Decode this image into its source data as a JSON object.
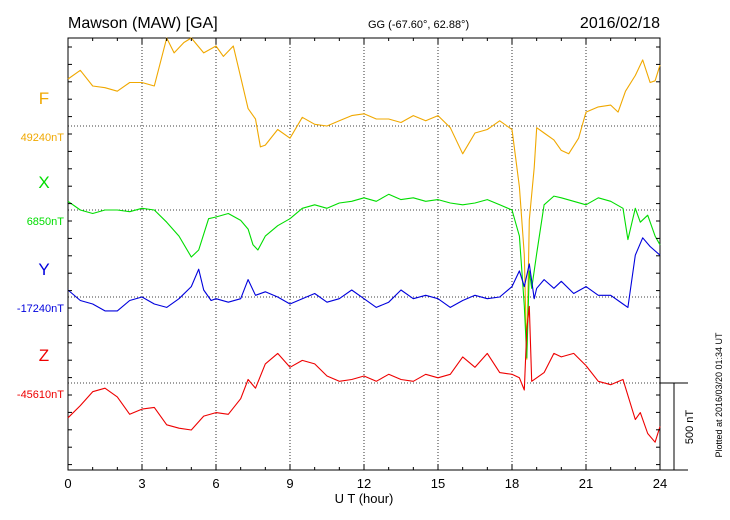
{
  "header": {
    "station": "Mawson (MAW)  [GA]",
    "coords": "GG (-67.60°,  62.88°)",
    "date": "2016/02/18"
  },
  "footer": {
    "xlabel": "U T (hour)",
    "scale_label": "500 nT",
    "plotted": "Plotted at 2016/03/20 01:34  UT"
  },
  "chart_data": {
    "type": "line",
    "xlabel": "U T (hour)",
    "xlim": [
      0,
      24
    ],
    "xticks": [
      "0",
      "3",
      "6",
      "9",
      "12",
      "15",
      "18",
      "21",
      "24"
    ],
    "scale_bar_nT": 500,
    "grid": true,
    "series": [
      {
        "name": "F",
        "baseline_label": "49240nT",
        "baseline_nT": 49240,
        "color": "#f0a800",
        "x": [
          0,
          0.5,
          1,
          1.5,
          2,
          2.5,
          3,
          3.5,
          4,
          4.3,
          4.7,
          5,
          5.5,
          6,
          6.3,
          6.7,
          7,
          7.3,
          7.6,
          7.8,
          8,
          8.5,
          9,
          9.5,
          10,
          10.5,
          11,
          11.5,
          12,
          12.5,
          13,
          13.5,
          14,
          14.5,
          15,
          15.5,
          16,
          16.5,
          17,
          17.5,
          18,
          18.3,
          18.5,
          18.6,
          18.7,
          18.9,
          19,
          19.3,
          19.7,
          20,
          20.3,
          20.7,
          21,
          21.5,
          22,
          22.3,
          22.6,
          23,
          23.3,
          23.6,
          23.8,
          24
        ],
        "y": [
          49510,
          49560,
          49470,
          49460,
          49440,
          49490,
          49490,
          49470,
          49890,
          49660,
          49720,
          49760,
          49660,
          49700,
          49640,
          49700,
          49520,
          49340,
          49280,
          49120,
          49130,
          49220,
          49170,
          49290,
          49250,
          49240,
          49270,
          49300,
          49310,
          49280,
          49280,
          49260,
          49300,
          49270,
          49300,
          49230,
          49080,
          49200,
          49220,
          49270,
          49220,
          48890,
          48500,
          47900,
          48700,
          49000,
          49230,
          49200,
          49160,
          49100,
          49080,
          49170,
          49320,
          49350,
          49360,
          49320,
          49440,
          49530,
          49620,
          49490,
          49500,
          49590
        ]
      },
      {
        "name": "X",
        "baseline_label": "6850nT",
        "baseline_nT": 6850,
        "color": "#00dd00",
        "x": [
          0,
          0.5,
          1,
          1.5,
          2,
          2.5,
          3,
          3.5,
          4,
          4.5,
          5,
          5.3,
          5.7,
          6,
          6.5,
          7,
          7.3,
          7.5,
          7.7,
          8,
          8.5,
          9,
          9.5,
          10,
          10.5,
          11,
          11.5,
          12,
          12.5,
          13,
          13.5,
          14,
          14.5,
          15,
          15.5,
          16,
          16.5,
          17,
          17.5,
          18,
          18.3,
          18.5,
          18.6,
          18.7,
          18.8,
          19,
          19.3,
          19.7,
          20,
          20.5,
          21,
          21.5,
          22,
          22.5,
          22.7,
          23,
          23.2,
          23.5,
          23.8,
          24
        ],
        "y": [
          6900,
          6850,
          6830,
          6850,
          6850,
          6840,
          6860,
          6850,
          6780,
          6700,
          6580,
          6620,
          6800,
          6810,
          6830,
          6790,
          6740,
          6650,
          6620,
          6700,
          6760,
          6800,
          6860,
          6880,
          6860,
          6890,
          6900,
          6920,
          6900,
          6940,
          6910,
          6920,
          6900,
          6910,
          6890,
          6880,
          6890,
          6910,
          6880,
          6850,
          6700,
          6300,
          6000,
          6500,
          6400,
          6600,
          6880,
          6930,
          6920,
          6900,
          6880,
          6920,
          6900,
          6860,
          6680,
          6860,
          6780,
          6820,
          6700,
          6650
        ]
      },
      {
        "name": "Y",
        "baseline_label": "-17240nT",
        "baseline_nT": -17240,
        "color": "#0000dd",
        "x": [
          0,
          0.5,
          1,
          1.5,
          2,
          2.5,
          3,
          3.5,
          4,
          4.5,
          5,
          5.3,
          5.5,
          5.8,
          6,
          6.5,
          7,
          7.3,
          7.6,
          8,
          8.5,
          9,
          9.5,
          10,
          10.5,
          11,
          11.5,
          12,
          12.5,
          13,
          13.5,
          14,
          14.5,
          15,
          15.5,
          16,
          16.5,
          17,
          17.5,
          18,
          18.3,
          18.5,
          18.7,
          18.9,
          19,
          19.3,
          19.7,
          20,
          20.5,
          21,
          21.5,
          22,
          22.5,
          22.7,
          23,
          23.3,
          23.6,
          24
        ],
        "y": [
          -17200,
          -17260,
          -17280,
          -17320,
          -17320,
          -17260,
          -17240,
          -17280,
          -17300,
          -17250,
          -17180,
          -17080,
          -17200,
          -17260,
          -17250,
          -17270,
          -17250,
          -17140,
          -17230,
          -17210,
          -17240,
          -17280,
          -17250,
          -17220,
          -17270,
          -17250,
          -17200,
          -17250,
          -17300,
          -17270,
          -17200,
          -17250,
          -17230,
          -17250,
          -17300,
          -17260,
          -17230,
          -17250,
          -17240,
          -17180,
          -17090,
          -17180,
          -17050,
          -17250,
          -17190,
          -17140,
          -17190,
          -17150,
          -17220,
          -17180,
          -17230,
          -17230,
          -17280,
          -17300,
          -17000,
          -16900,
          -16950,
          -17000
        ]
      },
      {
        "name": "Z",
        "baseline_label": "-45610nT",
        "baseline_nT": -45610,
        "color": "#ee0000",
        "x": [
          0,
          0.5,
          1,
          1.5,
          2,
          2.5,
          3,
          3.5,
          4,
          4.5,
          5,
          5.5,
          6,
          6.5,
          7,
          7.3,
          7.6,
          8,
          8.5,
          9,
          9.5,
          10,
          10.5,
          11,
          11.5,
          12,
          12.5,
          13,
          13.5,
          14,
          14.5,
          15,
          15.5,
          16,
          16.5,
          17,
          17.5,
          18,
          18.3,
          18.5,
          18.6,
          18.7,
          18.8,
          19,
          19.3,
          19.7,
          20,
          20.5,
          21,
          21.5,
          22,
          22.5,
          23,
          23.2,
          23.5,
          23.8,
          24
        ],
        "y": [
          -45810,
          -45740,
          -45660,
          -45640,
          -45690,
          -45790,
          -45760,
          -45750,
          -45850,
          -45870,
          -45880,
          -45800,
          -45780,
          -45790,
          -45700,
          -45590,
          -45640,
          -45500,
          -45440,
          -45520,
          -45480,
          -45500,
          -45570,
          -45600,
          -45590,
          -45570,
          -45600,
          -45560,
          -45590,
          -45600,
          -45560,
          -45580,
          -45560,
          -45460,
          -45520,
          -45440,
          -45550,
          -45560,
          -45580,
          -45650,
          -45300,
          -45170,
          -45600,
          -45580,
          -45550,
          -45440,
          -45460,
          -45440,
          -45510,
          -45600,
          -45620,
          -45590,
          -45820,
          -45780,
          -45900,
          -45950,
          -45860
        ]
      }
    ]
  }
}
